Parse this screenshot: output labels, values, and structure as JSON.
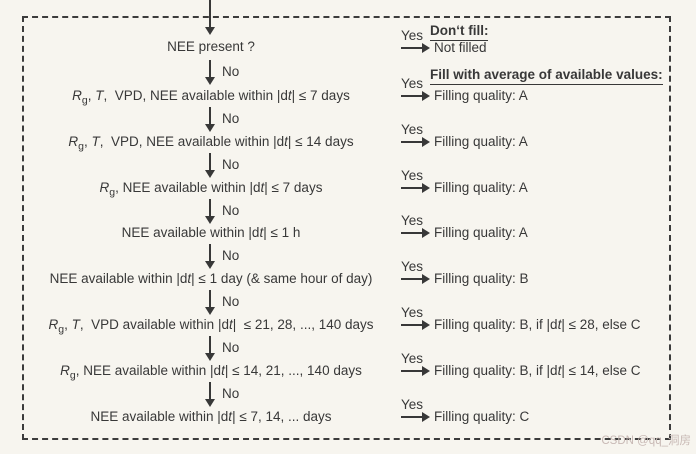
{
  "colors": {
    "background": "#f7f5ef",
    "ink": "#383838",
    "watermark": "#c9bab6"
  },
  "labels": {
    "yes": "Yes",
    "no": "No"
  },
  "headers": {
    "dont_fill": "Don‘t fill:",
    "fill_average": "Fill with average of available values:"
  },
  "watermark": "CSDN @qq_洞房",
  "steps": [
    {
      "question": [
        {
          "t": "NEE present ?"
        }
      ],
      "outcome_header": "dont_fill",
      "result": [
        {
          "t": "Not filled"
        }
      ]
    },
    {
      "question": [
        {
          "t": "R",
          "s": "i"
        },
        {
          "t": "g",
          "s": "sub"
        },
        {
          "t": ", "
        },
        {
          "t": "T",
          "s": "i"
        },
        {
          "t": ",  VPD, NEE available within |d"
        },
        {
          "t": "t",
          "s": "i"
        },
        {
          "t": "| ≤ 7 days"
        }
      ],
      "outcome_header": "fill_average",
      "result": [
        {
          "t": "Filling quality: A"
        }
      ]
    },
    {
      "question": [
        {
          "t": "R",
          "s": "i"
        },
        {
          "t": "g",
          "s": "sub"
        },
        {
          "t": ", "
        },
        {
          "t": "T",
          "s": "i"
        },
        {
          "t": ",  VPD, NEE available within |d"
        },
        {
          "t": "t",
          "s": "i"
        },
        {
          "t": "| ≤ 14 days"
        }
      ],
      "result": [
        {
          "t": "Filling quality: A"
        }
      ]
    },
    {
      "question": [
        {
          "t": "R",
          "s": "i"
        },
        {
          "t": "g",
          "s": "sub"
        },
        {
          "t": ", NEE available within |d"
        },
        {
          "t": "t",
          "s": "i"
        },
        {
          "t": "| ≤ 7 days"
        }
      ],
      "result": [
        {
          "t": "Filling quality: A"
        }
      ]
    },
    {
      "question": [
        {
          "t": "NEE available within |d"
        },
        {
          "t": "t",
          "s": "i"
        },
        {
          "t": "| ≤ 1 h"
        }
      ],
      "result": [
        {
          "t": "Filling quality: A"
        }
      ]
    },
    {
      "question": [
        {
          "t": "NEE available within |d"
        },
        {
          "t": "t",
          "s": "i"
        },
        {
          "t": "| ≤ 1 day (& same hour of day)"
        }
      ],
      "result": [
        {
          "t": "Filling quality: B"
        }
      ]
    },
    {
      "question": [
        {
          "t": "R",
          "s": "i"
        },
        {
          "t": "g",
          "s": "sub"
        },
        {
          "t": ", "
        },
        {
          "t": "T",
          "s": "i"
        },
        {
          "t": ",  VPD available within |d"
        },
        {
          "t": "t",
          "s": "i"
        },
        {
          "t": "|  ≤ 21, 28, ..., 140 days"
        }
      ],
      "result": [
        {
          "t": "Filling quality: B, if |d"
        },
        {
          "t": "t",
          "s": "i"
        },
        {
          "t": "| ≤ 28, else C"
        }
      ]
    },
    {
      "question": [
        {
          "t": "R",
          "s": "i"
        },
        {
          "t": "g",
          "s": "sub"
        },
        {
          "t": ", NEE available within |d"
        },
        {
          "t": "t",
          "s": "i"
        },
        {
          "t": "| ≤ 14, 21, ..., 140 days"
        }
      ],
      "result": [
        {
          "t": "Filling quality: B, if |d"
        },
        {
          "t": "t",
          "s": "i"
        },
        {
          "t": "| ≤ 14, else C"
        }
      ]
    },
    {
      "question": [
        {
          "t": "NEE available within |d"
        },
        {
          "t": "t",
          "s": "i"
        },
        {
          "t": "| ≤ 7, 14, ... days"
        }
      ],
      "result": [
        {
          "t": "Filling quality: C"
        }
      ]
    }
  ]
}
